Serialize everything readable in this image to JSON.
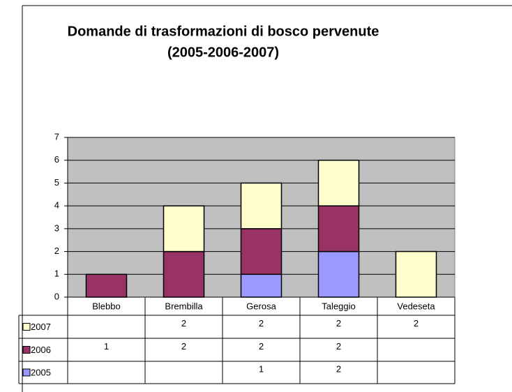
{
  "chart_data": {
    "type": "bar",
    "stacked": true,
    "title": "Domande di trasformazioni di bosco pervenute",
    "subtitle": "(2005-2006-2007)",
    "categories": [
      "Blebbo",
      "Brembilla",
      "Gerosa",
      "Taleggio",
      "Vedeseta"
    ],
    "series": [
      {
        "name": "2005",
        "color": "#9999ff",
        "values": [
          null,
          null,
          1,
          2,
          null
        ]
      },
      {
        "name": "2006",
        "color": "#993366",
        "values": [
          1,
          2,
          2,
          2,
          null
        ]
      },
      {
        "name": "2007",
        "color": "#ffffcc",
        "values": [
          null,
          2,
          2,
          2,
          2
        ]
      }
    ],
    "ylim": [
      0,
      7
    ],
    "yticks": [
      0,
      1,
      2,
      3,
      4,
      5,
      6,
      7
    ],
    "grid": true,
    "plot_background": "#c0c0c0",
    "data_table": true
  }
}
